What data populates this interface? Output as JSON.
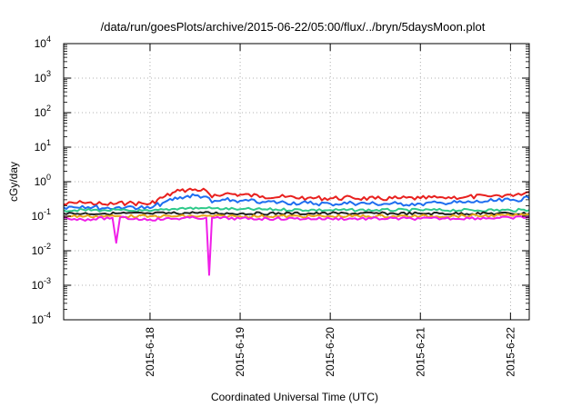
{
  "chart_data": {
    "type": "line",
    "title": "/data/run/goesPlots/archive/2015-06-22/05:00/flux/../bryn/5daysMoon.plot",
    "xlabel": "Coordinated Universal Time (UTC)",
    "ylabel": "cGy/day",
    "yscale": "log",
    "ylim": [
      0.0001,
      10000
    ],
    "y_ticks": [
      {
        "base": "10",
        "exp": "-4",
        "value": 0.0001
      },
      {
        "base": "10",
        "exp": "-3",
        "value": 0.001
      },
      {
        "base": "10",
        "exp": "-2",
        "value": 0.01
      },
      {
        "base": "10",
        "exp": "-1",
        "value": 0.1
      },
      {
        "base": "10",
        "exp": "0",
        "value": 1
      },
      {
        "base": "10",
        "exp": "1",
        "value": 10
      },
      {
        "base": "10",
        "exp": "2",
        "value": 100
      },
      {
        "base": "10",
        "exp": "3",
        "value": 1000
      },
      {
        "base": "10",
        "exp": "4",
        "value": 10000
      }
    ],
    "xlim": [
      "2015-06-17 01:00",
      "2015-06-22 05:00"
    ],
    "x_ticks": [
      "2015-6-18",
      "2015-6-19",
      "2015-6-20",
      "2015-6-21",
      "2015-6-22"
    ],
    "grid": true,
    "legend": "none",
    "series": [
      {
        "color": "#e8201e",
        "points": [
          [
            "2015-06-17 01:00",
            0.22
          ],
          [
            "2015-06-17 06:00",
            0.25
          ],
          [
            "2015-06-17 12:00",
            0.22
          ],
          [
            "2015-06-17 18:00",
            0.24
          ],
          [
            "2015-06-18 00:00",
            0.23
          ],
          [
            "2015-06-18 04:00",
            0.38
          ],
          [
            "2015-06-18 08:00",
            0.55
          ],
          [
            "2015-06-18 12:00",
            0.6
          ],
          [
            "2015-06-18 15:00",
            0.55
          ],
          [
            "2015-06-18 16:30",
            0.35
          ],
          [
            "2015-06-18 20:00",
            0.45
          ],
          [
            "2015-06-19 00:00",
            0.42
          ],
          [
            "2015-06-19 06:00",
            0.38
          ],
          [
            "2015-06-19 12:00",
            0.36
          ],
          [
            "2015-06-19 18:00",
            0.34
          ],
          [
            "2015-06-20 00:00",
            0.33
          ],
          [
            "2015-06-20 06:00",
            0.34
          ],
          [
            "2015-06-20 12:00",
            0.32
          ],
          [
            "2015-06-20 18:00",
            0.33
          ],
          [
            "2015-06-21 00:00",
            0.33
          ],
          [
            "2015-06-21 06:00",
            0.35
          ],
          [
            "2015-06-21 12:00",
            0.36
          ],
          [
            "2015-06-21 18:00",
            0.38
          ],
          [
            "2015-06-22 00:00",
            0.42
          ],
          [
            "2015-06-22 05:00",
            0.5
          ]
        ]
      },
      {
        "color": "#1e6ef0",
        "points": [
          [
            "2015-06-17 01:00",
            0.18
          ],
          [
            "2015-06-17 06:00",
            0.2
          ],
          [
            "2015-06-17 12:00",
            0.17
          ],
          [
            "2015-06-17 18:00",
            0.19
          ],
          [
            "2015-06-18 00:00",
            0.17
          ],
          [
            "2015-06-18 04:00",
            0.26
          ],
          [
            "2015-06-18 08:00",
            0.36
          ],
          [
            "2015-06-18 12:00",
            0.4
          ],
          [
            "2015-06-18 15:00",
            0.37
          ],
          [
            "2015-06-18 16:30",
            0.25
          ],
          [
            "2015-06-18 20:00",
            0.3
          ],
          [
            "2015-06-19 00:00",
            0.28
          ],
          [
            "2015-06-19 06:00",
            0.26
          ],
          [
            "2015-06-19 12:00",
            0.25
          ],
          [
            "2015-06-19 18:00",
            0.24
          ],
          [
            "2015-06-20 00:00",
            0.23
          ],
          [
            "2015-06-20 06:00",
            0.24
          ],
          [
            "2015-06-20 12:00",
            0.23
          ],
          [
            "2015-06-20 18:00",
            0.23
          ],
          [
            "2015-06-21 00:00",
            0.23
          ],
          [
            "2015-06-21 06:00",
            0.24
          ],
          [
            "2015-06-21 12:00",
            0.25
          ],
          [
            "2015-06-21 18:00",
            0.27
          ],
          [
            "2015-06-22 00:00",
            0.29
          ],
          [
            "2015-06-22 05:00",
            0.33
          ]
        ]
      },
      {
        "color": "#2ec98a",
        "points": [
          [
            "2015-06-17 01:00",
            0.15
          ],
          [
            "2015-06-17 12:00",
            0.15
          ],
          [
            "2015-06-18 00:00",
            0.14
          ],
          [
            "2015-06-18 08:00",
            0.17
          ],
          [
            "2015-06-18 15:00",
            0.17
          ],
          [
            "2015-06-19 00:00",
            0.16
          ],
          [
            "2015-06-20 00:00",
            0.15
          ],
          [
            "2015-06-21 00:00",
            0.15
          ],
          [
            "2015-06-22 00:00",
            0.15
          ],
          [
            "2015-06-22 05:00",
            0.15
          ]
        ]
      },
      {
        "color": "#222222",
        "points": [
          [
            "2015-06-17 01:00",
            0.12
          ],
          [
            "2015-06-17 12:00",
            0.12
          ],
          [
            "2015-06-18 00:00",
            0.12
          ],
          [
            "2015-06-18 12:00",
            0.125
          ],
          [
            "2015-06-19 00:00",
            0.12
          ],
          [
            "2015-06-20 00:00",
            0.12
          ],
          [
            "2015-06-21 00:00",
            0.12
          ],
          [
            "2015-06-22 00:00",
            0.12
          ],
          [
            "2015-06-22 05:00",
            0.12
          ]
        ]
      },
      {
        "color": "#e8a81e",
        "points": [
          [
            "2015-06-17 01:00",
            0.1
          ],
          [
            "2015-06-18 00:00",
            0.1
          ],
          [
            "2015-06-19 00:00",
            0.1
          ],
          [
            "2015-06-20 00:00",
            0.1
          ],
          [
            "2015-06-21 00:00",
            0.1
          ],
          [
            "2015-06-22 00:00",
            0.105
          ],
          [
            "2015-06-22 05:00",
            0.11
          ]
        ]
      },
      {
        "color": "#f01ee8",
        "points": [
          [
            "2015-06-17 01:00",
            0.09
          ],
          [
            "2015-06-17 06:00",
            0.08
          ],
          [
            "2015-06-17 14:00",
            0.09
          ],
          [
            "2015-06-17 15:00",
            0.017
          ],
          [
            "2015-06-17 16:00",
            0.09
          ],
          [
            "2015-06-18 00:00",
            0.08
          ],
          [
            "2015-06-18 12:00",
            0.09
          ],
          [
            "2015-06-18 15:00",
            0.09
          ],
          [
            "2015-06-18 15:45",
            0.002
          ],
          [
            "2015-06-18 16:30",
            0.09
          ],
          [
            "2015-06-19 00:00",
            0.085
          ],
          [
            "2015-06-20 00:00",
            0.085
          ],
          [
            "2015-06-21 00:00",
            0.085
          ],
          [
            "2015-06-22 00:00",
            0.09
          ],
          [
            "2015-06-22 05:00",
            0.095
          ]
        ]
      }
    ]
  }
}
